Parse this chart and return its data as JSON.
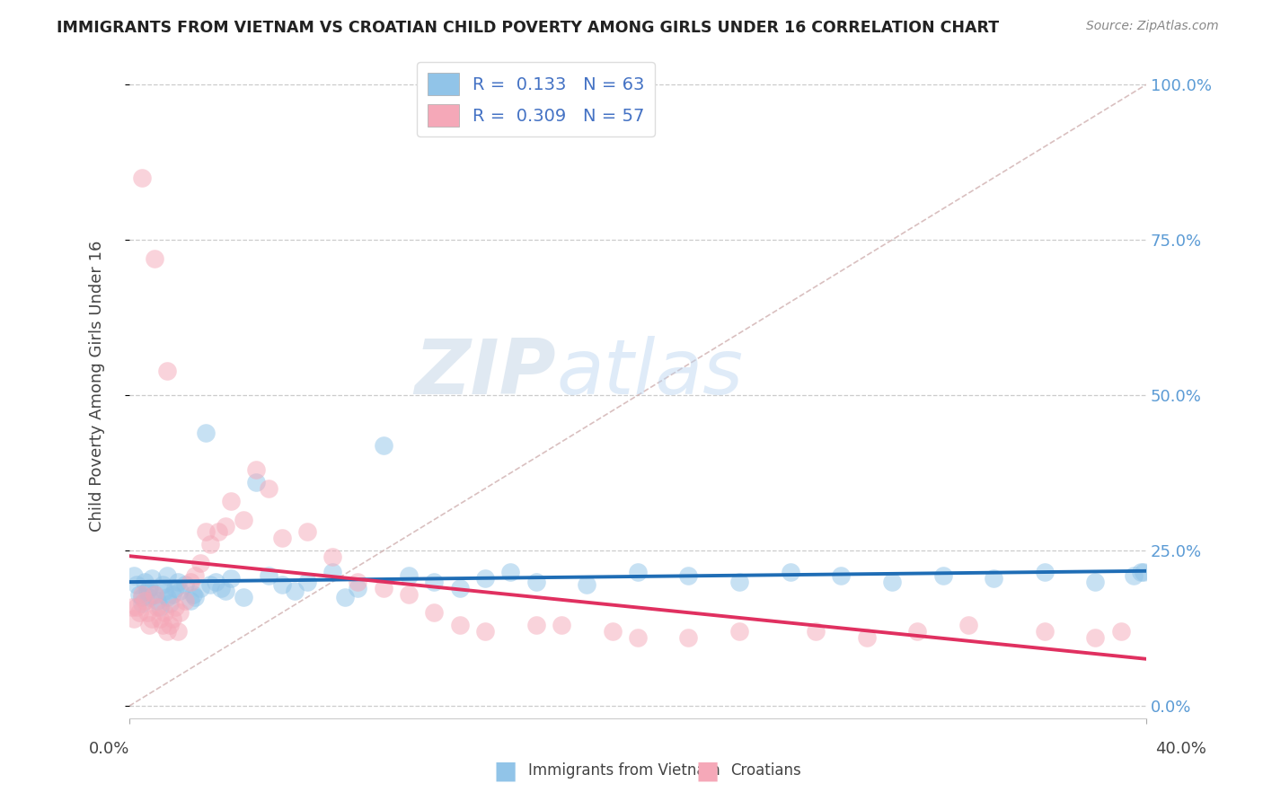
{
  "title": "IMMIGRANTS FROM VIETNAM VS CROATIAN CHILD POVERTY AMONG GIRLS UNDER 16 CORRELATION CHART",
  "source": "Source: ZipAtlas.com",
  "ylabel": "Child Poverty Among Girls Under 16",
  "yticks": [
    "0.0%",
    "25.0%",
    "50.0%",
    "75.0%",
    "100.0%"
  ],
  "ytick_vals": [
    0.0,
    0.25,
    0.5,
    0.75,
    1.0
  ],
  "xlim": [
    0.0,
    0.4
  ],
  "ylim": [
    -0.02,
    1.05
  ],
  "watermark_zip": "ZIP",
  "watermark_atlas": "atlas",
  "color_blue": "#91c4e8",
  "color_pink": "#f5a8b8",
  "color_blue_line": "#1f6db5",
  "color_pink_line": "#e03060",
  "color_diag": "#d0b0b0",
  "vietnam_x": [
    0.002,
    0.003,
    0.004,
    0.005,
    0.005,
    0.006,
    0.007,
    0.008,
    0.008,
    0.009,
    0.01,
    0.011,
    0.012,
    0.013,
    0.014,
    0.015,
    0.015,
    0.016,
    0.017,
    0.018,
    0.019,
    0.02,
    0.022,
    0.024,
    0.025,
    0.026,
    0.028,
    0.03,
    0.032,
    0.034,
    0.036,
    0.038,
    0.04,
    0.045,
    0.05,
    0.055,
    0.06,
    0.065,
    0.07,
    0.08,
    0.085,
    0.09,
    0.1,
    0.11,
    0.12,
    0.13,
    0.14,
    0.15,
    0.16,
    0.18,
    0.2,
    0.22,
    0.24,
    0.26,
    0.28,
    0.3,
    0.32,
    0.34,
    0.36,
    0.38,
    0.395,
    0.398,
    0.399
  ],
  "vietnam_y": [
    0.21,
    0.195,
    0.18,
    0.175,
    0.165,
    0.2,
    0.185,
    0.19,
    0.175,
    0.205,
    0.18,
    0.17,
    0.16,
    0.195,
    0.185,
    0.175,
    0.21,
    0.165,
    0.18,
    0.19,
    0.2,
    0.185,
    0.195,
    0.17,
    0.18,
    0.175,
    0.19,
    0.44,
    0.195,
    0.2,
    0.19,
    0.185,
    0.205,
    0.175,
    0.36,
    0.21,
    0.195,
    0.185,
    0.2,
    0.215,
    0.175,
    0.19,
    0.42,
    0.21,
    0.2,
    0.19,
    0.205,
    0.215,
    0.2,
    0.195,
    0.215,
    0.21,
    0.2,
    0.215,
    0.21,
    0.2,
    0.21,
    0.205,
    0.215,
    0.2,
    0.21,
    0.215,
    0.215
  ],
  "croatian_x": [
    0.001,
    0.002,
    0.003,
    0.004,
    0.005,
    0.006,
    0.007,
    0.008,
    0.009,
    0.01,
    0.011,
    0.012,
    0.013,
    0.014,
    0.015,
    0.016,
    0.017,
    0.018,
    0.019,
    0.02,
    0.022,
    0.024,
    0.026,
    0.028,
    0.03,
    0.032,
    0.035,
    0.038,
    0.04,
    0.045,
    0.05,
    0.055,
    0.06,
    0.07,
    0.08,
    0.09,
    0.1,
    0.11,
    0.12,
    0.13,
    0.14,
    0.16,
    0.17,
    0.19,
    0.2,
    0.22,
    0.24,
    0.27,
    0.29,
    0.31,
    0.33,
    0.36,
    0.38,
    0.39,
    0.005,
    0.01,
    0.015
  ],
  "croatian_y": [
    0.16,
    0.14,
    0.16,
    0.15,
    0.18,
    0.17,
    0.15,
    0.13,
    0.14,
    0.18,
    0.16,
    0.14,
    0.13,
    0.15,
    0.12,
    0.13,
    0.14,
    0.16,
    0.12,
    0.15,
    0.17,
    0.2,
    0.21,
    0.23,
    0.28,
    0.26,
    0.28,
    0.29,
    0.33,
    0.3,
    0.38,
    0.35,
    0.27,
    0.28,
    0.24,
    0.2,
    0.19,
    0.18,
    0.15,
    0.13,
    0.12,
    0.13,
    0.13,
    0.12,
    0.11,
    0.11,
    0.12,
    0.12,
    0.11,
    0.12,
    0.13,
    0.12,
    0.11,
    0.12,
    0.85,
    0.72,
    0.54
  ]
}
